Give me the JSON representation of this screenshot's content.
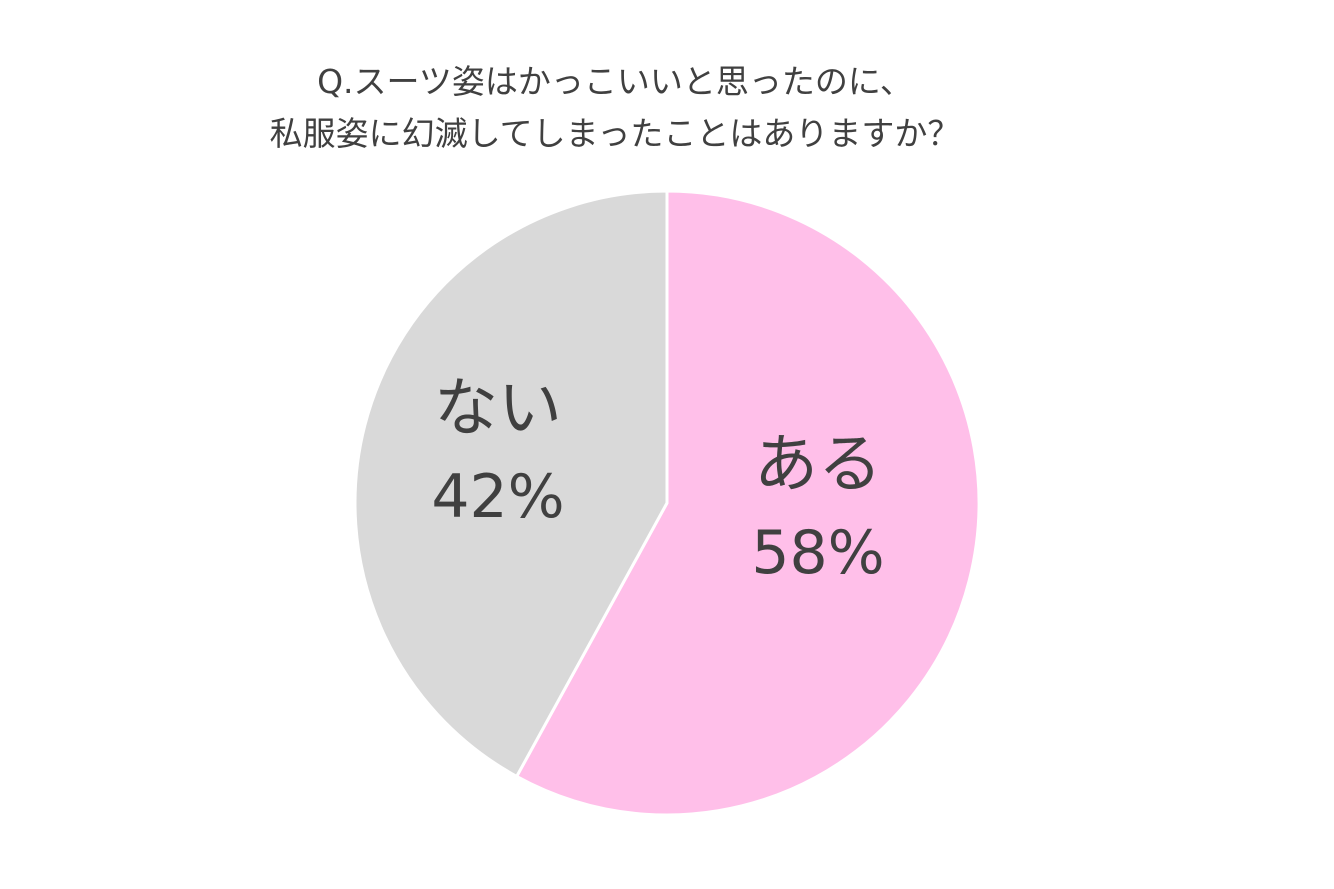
{
  "chart_data": {
    "type": "pie",
    "title_lines": [
      "Q.スーツ姿はかっこいいと思ったのに、",
      "私服姿に幻滅してしまったことはありますか？"
    ],
    "slices": [
      {
        "label": "ある",
        "value": 58,
        "value_text": "58%",
        "color": "#FFBFE9"
      },
      {
        "label": "ない",
        "value": 42,
        "value_text": "42%",
        "color": "#D9D9D9"
      }
    ],
    "start": "12 o'clock",
    "direction": "clockwise",
    "border_color": "#FFFFFF",
    "legend": "none"
  }
}
